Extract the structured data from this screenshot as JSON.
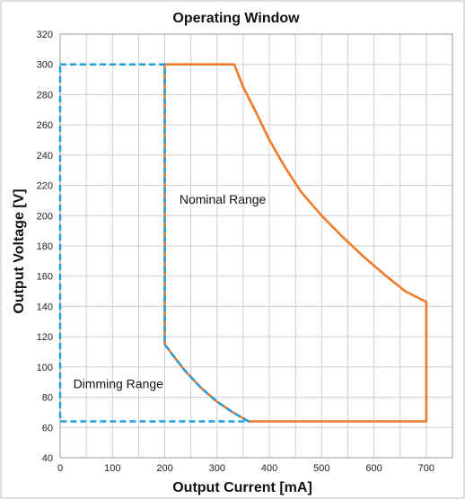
{
  "chart_data": {
    "type": "line",
    "title": "Operating Window",
    "xlabel": "Output Current [mA]",
    "ylabel": "Output Voltage [V]",
    "xlim": [
      0,
      750
    ],
    "ylim": [
      40,
      320
    ],
    "x_ticks": [
      0,
      100,
      200,
      300,
      400,
      500,
      600,
      700
    ],
    "y_ticks": [
      40,
      60,
      80,
      100,
      120,
      140,
      160,
      180,
      200,
      220,
      240,
      260,
      280,
      300,
      320
    ],
    "x_minor_step": 50,
    "grid": true,
    "series": [
      {
        "color": "#f07a28",
        "style": "solid",
        "x": [
          200,
          333,
          350,
          375,
          400,
          430,
          460,
          500,
          540,
          580,
          620,
          660,
          700,
          700,
          360,
          330,
          300,
          270,
          240,
          215,
          200,
          200
        ],
        "y": [
          300,
          300,
          285,
          268,
          250,
          232,
          216,
          200,
          186,
          173,
          161,
          150,
          143,
          64,
          64,
          70,
          77,
          86,
          97,
          108,
          115,
          300
        ]
      },
      {
        "color": "#1f9fe0",
        "style": "dashed",
        "x": [
          0,
          200,
          200,
          215,
          240,
          270,
          300,
          330,
          360,
          0,
          0
        ],
        "y": [
          300,
          300,
          115,
          108,
          97,
          86,
          77,
          70,
          64,
          64,
          300
        ]
      }
    ],
    "annotations": [
      {
        "text": "Nominal Range",
        "x": 228,
        "y": 208
      },
      {
        "text": "Dimming Range",
        "x": 25,
        "y": 86
      }
    ]
  }
}
